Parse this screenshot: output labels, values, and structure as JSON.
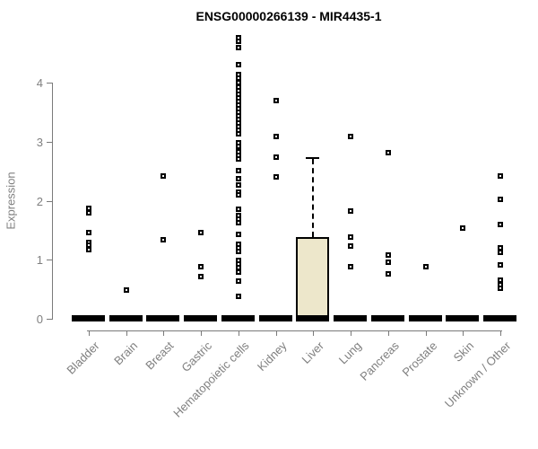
{
  "chart_data": {
    "type": "boxplot",
    "title": "ENSG00000266139 - MIR4435-1",
    "ylabel": "Expression",
    "xlabel": "",
    "ylim": [
      0,
      4
    ],
    "yticks": [
      0,
      1,
      2,
      3,
      4
    ],
    "grid": false,
    "legend": "none",
    "marker": "open-square",
    "colors": {
      "title": "#000000",
      "axis": "#7a7a7a",
      "tick_label": "#7f7f7f",
      "point": "#000000",
      "box_fill": "#ede7cb",
      "box_border": "#000000"
    },
    "categories": [
      "Bladder",
      "Brain",
      "Breast",
      "Gastric",
      "Hematopoietic cells",
      "Kidney",
      "Liver",
      "Lung",
      "Pancreas",
      "Prostate",
      "Skin",
      "Unknown / Other"
    ],
    "series": [
      {
        "category": "Bladder",
        "box": {
          "min": 0,
          "q1": 0,
          "median": 0,
          "q3": 0,
          "max": 0
        },
        "points": [
          1.87,
          1.8,
          1.46,
          1.3,
          1.25,
          1.17
        ]
      },
      {
        "category": "Brain",
        "box": {
          "min": 0,
          "q1": 0,
          "median": 0,
          "q3": 0,
          "max": 0
        },
        "points": [
          0.49
        ]
      },
      {
        "category": "Breast",
        "box": {
          "min": 0,
          "q1": 0,
          "median": 0,
          "q3": 0,
          "max": 0
        },
        "points": [
          2.42,
          1.34
        ]
      },
      {
        "category": "Gastric",
        "box": {
          "min": 0,
          "q1": 0,
          "median": 0,
          "q3": 0,
          "max": 0
        },
        "points": [
          1.46,
          0.88,
          0.71
        ]
      },
      {
        "category": "Hematopoietic cells",
        "box": {
          "min": 0,
          "q1": 0,
          "median": 0,
          "q3": 0,
          "max": 0
        },
        "points": [
          4.76,
          4.7,
          4.59,
          4.3,
          4.14,
          4.08,
          4.01,
          3.92,
          3.86,
          3.8,
          3.74,
          3.68,
          3.62,
          3.56,
          3.5,
          3.44,
          3.38,
          3.32,
          3.26,
          3.19,
          3.13,
          2.98,
          2.92,
          2.83,
          2.77,
          2.71,
          2.51,
          2.37,
          2.27,
          2.14,
          2.1,
          1.86,
          1.75,
          1.69,
          1.63,
          1.43,
          1.26,
          1.2,
          1.14,
          0.99,
          0.93,
          0.87,
          0.79,
          0.64,
          0.38
        ]
      },
      {
        "category": "Kidney",
        "box": {
          "min": 0,
          "q1": 0,
          "median": 0,
          "q3": 0,
          "max": 0
        },
        "points": [
          3.7,
          3.09,
          2.74,
          2.4
        ]
      },
      {
        "category": "Liver",
        "box": {
          "min": 0,
          "q1": 0,
          "median": 0,
          "q3": 1.38,
          "max": 2.74
        },
        "points": []
      },
      {
        "category": "Lung",
        "box": {
          "min": 0,
          "q1": 0,
          "median": 0,
          "q3": 0,
          "max": 0
        },
        "points": [
          3.09,
          1.82,
          1.39,
          1.24,
          0.88
        ]
      },
      {
        "category": "Pancreas",
        "box": {
          "min": 0,
          "q1": 0,
          "median": 0,
          "q3": 0,
          "max": 0
        },
        "points": [
          2.81,
          1.08,
          0.96,
          0.76
        ]
      },
      {
        "category": "Prostate",
        "box": {
          "min": 0,
          "q1": 0,
          "median": 0,
          "q3": 0,
          "max": 0
        },
        "points": [
          0.88
        ]
      },
      {
        "category": "Skin",
        "box": {
          "min": 0,
          "q1": 0,
          "median": 0,
          "q3": 0,
          "max": 0
        },
        "points": [
          1.53
        ]
      },
      {
        "category": "Unknown / Other",
        "box": {
          "min": 0,
          "q1": 0,
          "median": 0,
          "q3": 0,
          "max": 0
        },
        "points": [
          2.42,
          2.02,
          1.6,
          1.21,
          1.12,
          0.92,
          0.66,
          0.58,
          0.51
        ]
      }
    ]
  }
}
